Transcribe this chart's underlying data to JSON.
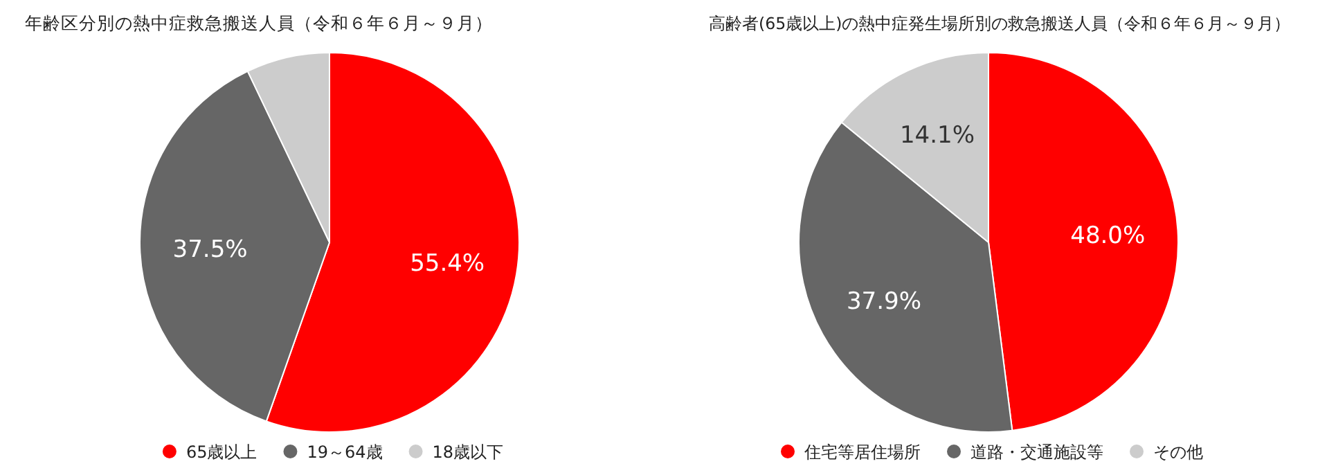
{
  "chart_data": [
    {
      "type": "pie",
      "title": "年齢区分別の熱中症救急搬送人員（令和６年６月～９月）",
      "categories": [
        "65歳以上",
        "19～64歳",
        "18歳以下"
      ],
      "values": [
        55.4,
        37.5,
        7.1
      ],
      "colors": [
        "#ff0000",
        "#666666",
        "#cccccc"
      ],
      "value_labels": [
        "55.4%",
        "37.5%",
        null
      ],
      "legend": "bottom"
    },
    {
      "type": "pie",
      "title": "高齢者(65歳以上)の熱中症発生場所別の救急搬送人員（令和６年６月～９月）",
      "categories": [
        "住宅等居住場所",
        "道路・交通施設等",
        "その他"
      ],
      "values": [
        48.0,
        37.9,
        14.1
      ],
      "colors": [
        "#ff0000",
        "#666666",
        "#cccccc"
      ],
      "value_labels": [
        "48.0%",
        "37.9%",
        "14.1%"
      ],
      "legend": "bottom"
    }
  ]
}
